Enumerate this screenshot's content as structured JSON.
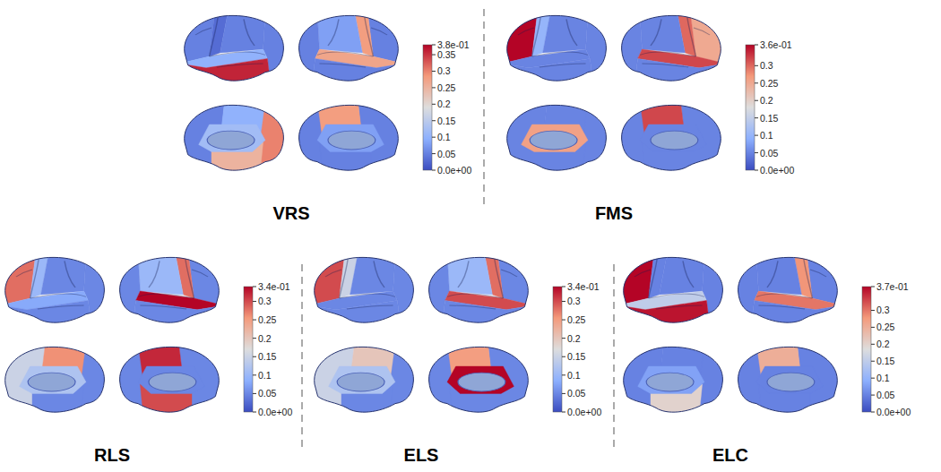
{
  "chart_data": [
    {
      "type": "heatmap",
      "title": "VRS",
      "colorbar_range": [
        0,
        0.38
      ],
      "colorbar_ticks": [
        {
          "value": 0,
          "label": "0.0e+00"
        },
        0.05,
        0.1,
        0.15,
        0.2,
        0.25,
        0.3,
        0.35,
        {
          "value": 0.38,
          "label": "3.8e-01"
        }
      ],
      "cells": [
        [
          0.05,
          0.03,
          0.05,
          0.05,
          0.1,
          0.36
        ],
        [
          0.05,
          0.28,
          0.08,
          0.05,
          0.27,
          0.05
        ],
        [
          0.05,
          0.12,
          0.1,
          0.3,
          0.25
        ],
        [
          0.05,
          0.08,
          0.28,
          0.05,
          0.05
        ]
      ]
    },
    {
      "type": "heatmap",
      "title": "FMS",
      "colorbar_range": [
        0,
        0.36
      ],
      "colorbar_ticks": [
        {
          "value": 0,
          "label": "0.0e+00"
        },
        0.05,
        0.1,
        0.15,
        0.2,
        0.25,
        0.3,
        {
          "value": 0.36,
          "label": "3.6e-01"
        }
      ],
      "cells": [
        [
          0.36,
          0.1,
          0.05,
          0.05,
          0.05,
          0.05
        ],
        [
          0.25,
          0.3,
          0.05,
          0.05,
          0.32,
          0.05
        ],
        [
          0.05,
          0.26,
          0.05,
          0.05,
          0.05
        ],
        [
          0.05,
          0.05,
          0.32,
          0.05,
          0.05
        ]
      ]
    },
    {
      "type": "heatmap",
      "title": "RLS",
      "colorbar_range": [
        0,
        0.34
      ],
      "colorbar_ticks": [
        {
          "value": 0,
          "label": "0.0e+00"
        },
        0.05,
        0.1,
        0.15,
        0.2,
        0.25,
        0.3,
        {
          "value": 0.34,
          "label": "3.4e-01"
        }
      ],
      "cells": [
        [
          0.28,
          0.1,
          0.05,
          0.05,
          0.08,
          0.05
        ],
        [
          0.05,
          0.28,
          0.1,
          0.05,
          0.34,
          0.05
        ],
        [
          0.15,
          0.12,
          0.26,
          0.05,
          0.05
        ],
        [
          0.05,
          0.05,
          0.32,
          0.05,
          0.3
        ]
      ]
    },
    {
      "type": "heatmap",
      "title": "ELS",
      "colorbar_range": [
        0,
        0.34
      ],
      "colorbar_ticks": [
        {
          "value": 0,
          "label": "0.0e+00"
        },
        0.05,
        0.1,
        0.15,
        0.2,
        0.25,
        0.3,
        {
          "value": 0.34,
          "label": "3.4e-01"
        }
      ],
      "cells": [
        [
          0.3,
          0.15,
          0.05,
          0.05,
          0.05,
          0.05
        ],
        [
          0.05,
          0.28,
          0.1,
          0.05,
          0.3,
          0.05
        ],
        [
          0.15,
          0.12,
          0.2,
          0.05,
          0.05
        ],
        [
          0.05,
          0.34,
          0.25,
          0.05,
          0.05
        ]
      ]
    },
    {
      "type": "heatmap",
      "title": "ELC",
      "colorbar_range": [
        0,
        0.37
      ],
      "colorbar_ticks": [
        {
          "value": 0,
          "label": "0.0e+00"
        },
        0.05,
        0.1,
        0.15,
        0.2,
        0.25,
        0.3,
        {
          "value": 0.37,
          "label": "3.7e-01"
        }
      ],
      "cells": [
        [
          0.37,
          0.05,
          0.05,
          0.05,
          0.15,
          0.36
        ],
        [
          0.05,
          0.28,
          0.05,
          0.05,
          0.3,
          0.05
        ],
        [
          0.05,
          0.08,
          0.05,
          0.05,
          0.2
        ],
        [
          0.05,
          0.05,
          0.25,
          0.05,
          0.05
        ]
      ]
    }
  ]
}
